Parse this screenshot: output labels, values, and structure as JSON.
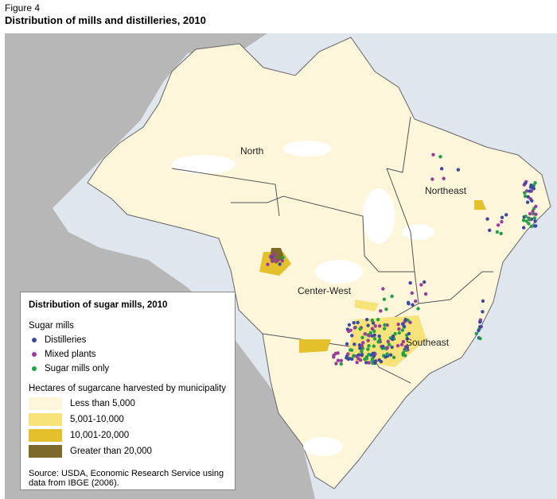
{
  "header": {
    "figure": "Figure 4",
    "title": "Distribution of mills and distilleries, 2010"
  },
  "map": {
    "regions": [
      "North",
      "Northeast",
      "Center-West",
      "Southeast"
    ]
  },
  "legend": {
    "title": "Distribution of sugar mills, 2010",
    "mills_heading": "Sugar mills",
    "mills": [
      {
        "label": "Distilleries",
        "color": "#3b4aa3"
      },
      {
        "label": "Mixed plants",
        "color": "#9a3c9a"
      },
      {
        "label": "Sugar mills only",
        "color": "#1fa04a"
      }
    ],
    "hectares_heading": "Hectares of sugarcane harvested by municipality",
    "hectares": [
      {
        "label": "Less than 5,000",
        "color": "#fdf6da"
      },
      {
        "label": "5,001-10,000",
        "color": "#f8e27a"
      },
      {
        "label": "10,001-20,000",
        "color": "#e3c02c"
      },
      {
        "label": "Greater than 20,000",
        "color": "#7d6a2a"
      }
    ],
    "source": "Source: USDA, Economic Research Service using data from IBGE (2006)."
  }
}
